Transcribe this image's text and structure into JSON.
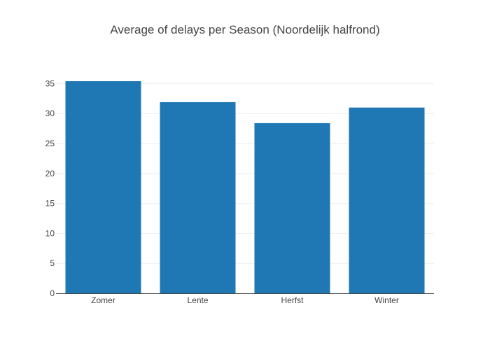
{
  "chart_data": {
    "type": "bar",
    "title": "Average of delays per Season (Noordelijk halfrond)",
    "xlabel": "",
    "ylabel": "",
    "categories": [
      "Zomer",
      "Lente",
      "Herfst",
      "Winter"
    ],
    "values": [
      35.4,
      31.9,
      28.4,
      31.0
    ],
    "ylim": [
      0,
      35.4
    ],
    "yticks": [
      0,
      5,
      10,
      15,
      20,
      25,
      30,
      35
    ],
    "grid": true,
    "bar_color": "#1f77b4"
  }
}
